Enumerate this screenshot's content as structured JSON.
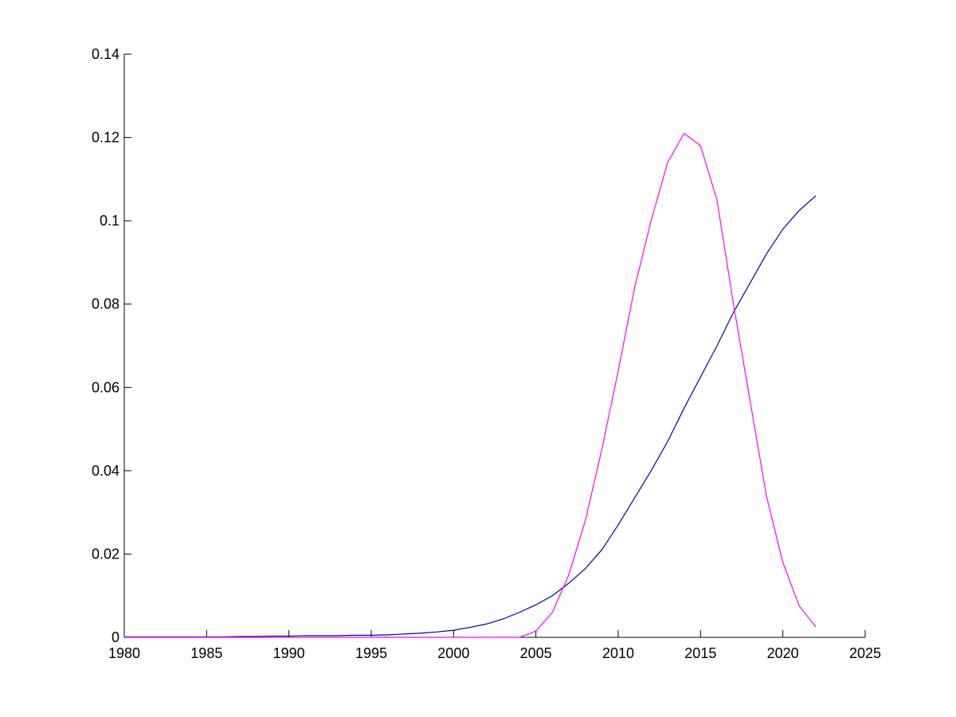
{
  "chart_data": {
    "type": "line",
    "x": [
      1980,
      1981,
      1982,
      1983,
      1984,
      1985,
      1986,
      1987,
      1988,
      1989,
      1990,
      1991,
      1992,
      1993,
      1994,
      1995,
      1996,
      1997,
      1998,
      1999,
      2000,
      2001,
      2002,
      2003,
      2004,
      2005,
      2006,
      2007,
      2008,
      2009,
      2010,
      2011,
      2012,
      2013,
      2014,
      2015,
      2016,
      2017,
      2018,
      2019,
      2020,
      2021,
      2022
    ],
    "series": [
      {
        "color": "#0000aa",
        "values": [
          0.0001,
          0.0001,
          0.0001,
          0.0001,
          0.0001,
          0.0001,
          0.0001,
          0.0002,
          0.0002,
          0.0003,
          0.0003,
          0.0004,
          0.0004,
          0.0004,
          0.0005,
          0.0005,
          0.0006,
          0.0008,
          0.001,
          0.0013,
          0.0017,
          0.0024,
          0.0032,
          0.0044,
          0.006,
          0.0078,
          0.01,
          0.013,
          0.0165,
          0.021,
          0.027,
          0.0335,
          0.04,
          0.047,
          0.055,
          0.0625,
          0.07,
          0.078,
          0.085,
          0.092,
          0.098,
          0.1025,
          0.106
        ]
      },
      {
        "color": "#ff00ff",
        "values": [
          0,
          0,
          0,
          0,
          0,
          0,
          0,
          0,
          0,
          0,
          0,
          0,
          0,
          0,
          0,
          0,
          0,
          0,
          0,
          0,
          0,
          0,
          0,
          0,
          0,
          0.0015,
          0.006,
          0.015,
          0.028,
          0.045,
          0.064,
          0.084,
          0.1,
          0.114,
          0.121,
          0.118,
          0.105,
          0.08,
          0.057,
          0.034,
          0.018,
          0.0075,
          0.0025
        ]
      }
    ],
    "xlim": [
      1980,
      2025
    ],
    "xticks": [
      1980,
      1985,
      1990,
      1995,
      2000,
      2005,
      2010,
      2015,
      2020,
      2025
    ],
    "ylim": [
      0,
      0.14
    ],
    "yticks": [
      0,
      0.02,
      0.04,
      0.06,
      0.08,
      0.1,
      0.12,
      0.14
    ]
  }
}
